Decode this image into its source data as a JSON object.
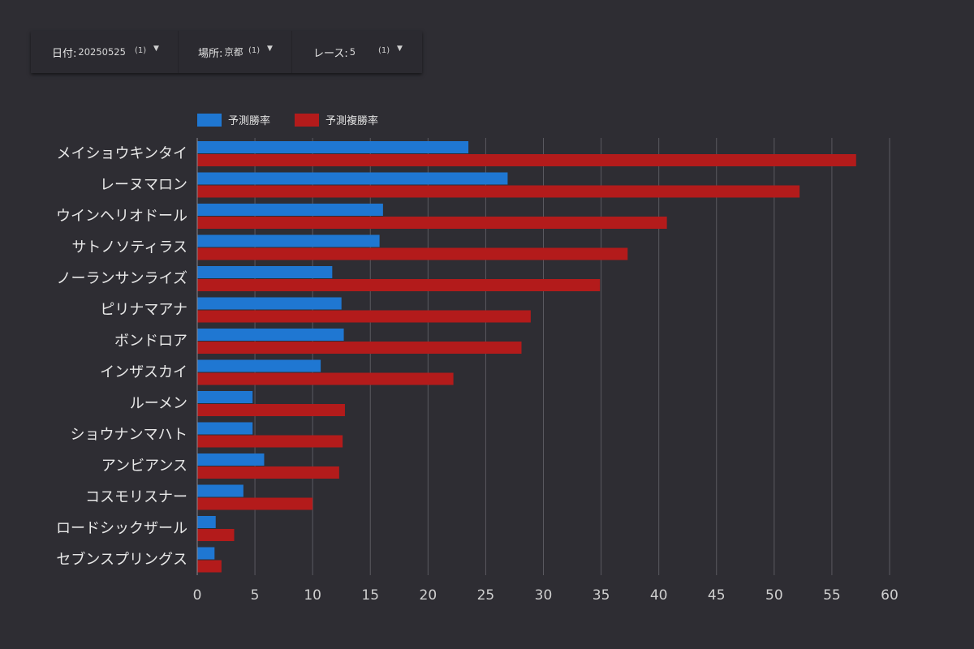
{
  "filters": [
    {
      "label": "日付:",
      "value": "20250525",
      "count": "(1)",
      "icon": "caret-down-icon"
    },
    {
      "label": "場所:",
      "value": "京都",
      "count": "(1)",
      "icon": "caret-down-icon"
    },
    {
      "label": "レース:",
      "value": "5",
      "count": "(1)",
      "icon": "caret-down-icon"
    }
  ],
  "colors": {
    "background": "#2e2d33",
    "series_win": "#1f77d2",
    "series_place": "#b31b1b",
    "grid": "#5a5960",
    "text": "#e8e8e8"
  },
  "chart_data": {
    "type": "bar",
    "orientation": "horizontal",
    "categories": [
      "メイショウキンタイ",
      "レーヌマロン",
      "ウインヘリオドール",
      "サトノソティラス",
      "ノーランサンライズ",
      "ピリナマアナ",
      "ボンドロア",
      "インザスカイ",
      "ルーメン",
      "ショウナンマハト",
      "アンビアンス",
      "コスモリスナー",
      "ロードシックザール",
      "セブンスプリングス"
    ],
    "series": [
      {
        "name": "予測勝率",
        "color": "#1f77d2",
        "values": [
          23.5,
          26.9,
          16.1,
          15.8,
          11.7,
          12.5,
          12.7,
          10.7,
          4.8,
          4.8,
          5.8,
          4.0,
          1.6,
          1.5
        ]
      },
      {
        "name": "予測複勝率",
        "color": "#b31b1b",
        "values": [
          57.1,
          52.2,
          40.7,
          37.3,
          34.9,
          28.9,
          28.1,
          22.2,
          12.8,
          12.6,
          12.3,
          10.0,
          3.2,
          2.1
        ]
      }
    ],
    "xlim": [
      0,
      60
    ],
    "x_ticks": [
      0,
      5,
      10,
      15,
      20,
      25,
      30,
      35,
      40,
      45,
      50,
      55,
      60
    ],
    "grid": true,
    "legend_position": "top-left"
  }
}
